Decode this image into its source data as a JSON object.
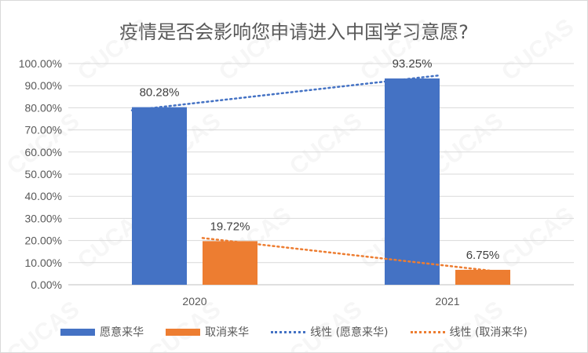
{
  "chart_data": {
    "type": "bar",
    "title": "疫情是否会影响您申请进入中国学习意愿?",
    "categories": [
      "2020",
      "2021"
    ],
    "series": [
      {
        "name": "愿意来华",
        "values": [
          80.28,
          93.25
        ],
        "labels": [
          "80.28%",
          "93.25%"
        ],
        "color": "#4472c4"
      },
      {
        "name": "取消来华",
        "values": [
          19.72,
          6.75
        ],
        "labels": [
          "19.72%",
          "6.75%"
        ],
        "color": "#ed7d31"
      }
    ],
    "trendlines": [
      {
        "name": "线性 (愿意来华)",
        "series": "愿意来华",
        "type": "linear",
        "color": "#4472c4"
      },
      {
        "name": "线性 (取消来华)",
        "series": "取消来华",
        "type": "linear",
        "color": "#ed7d31"
      }
    ],
    "ylim": [
      0,
      100
    ],
    "ytick_labels": [
      "0.00%",
      "10.00%",
      "20.00%",
      "30.00%",
      "40.00%",
      "50.00%",
      "60.00%",
      "70.00%",
      "80.00%",
      "90.00%",
      "100.00%"
    ],
    "grid": true,
    "legend_position": "bottom",
    "watermark": "CUCAS"
  }
}
